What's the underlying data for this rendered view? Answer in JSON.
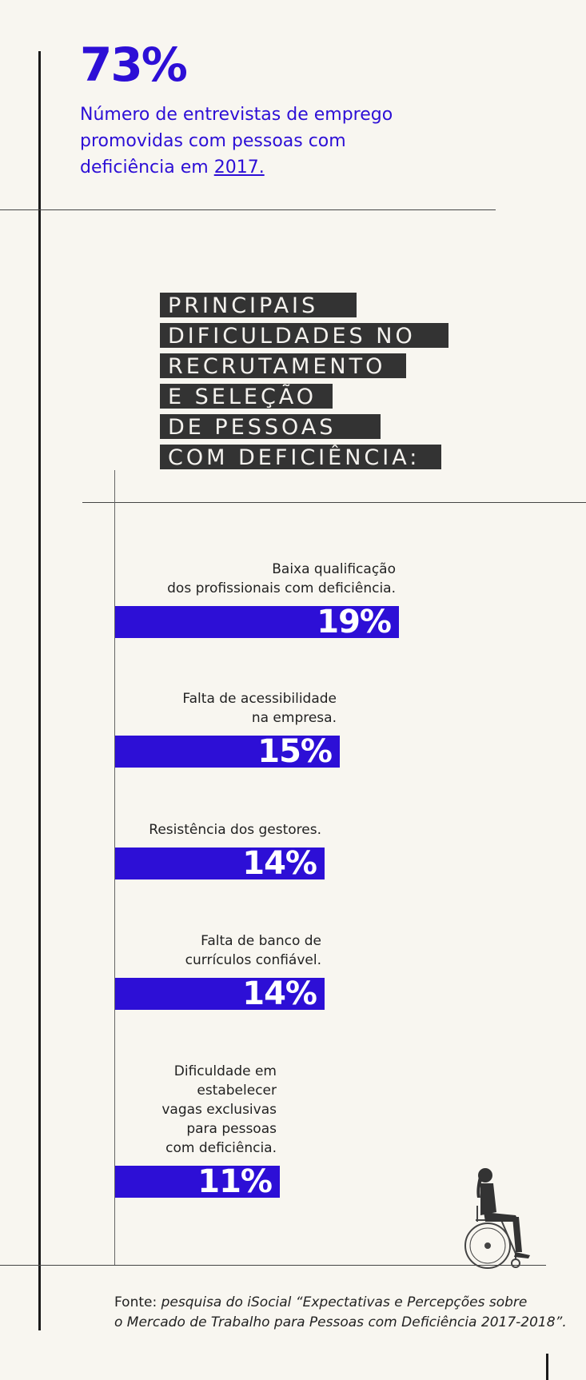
{
  "highlight": {
    "value": "73%",
    "description": "Número de entrevistas de emprego promovidas com pessoas com deficiência em",
    "year": "2017."
  },
  "heading": {
    "lines": [
      "PRINCIPAIS",
      "DIFICULDADES NO",
      "RECRUTAMENTO",
      "E SELEÇÃO",
      "DE PESSOAS",
      "COM DEFICIÊNCIA:"
    ]
  },
  "chart_data": {
    "type": "bar",
    "orientation": "horizontal",
    "categories": [
      "Baixa qualificação dos profissionais com deficiência.",
      "Falta de acessibilidade na empresa.",
      "Resistência dos gestores.",
      "Falta de banco de currículos confiável.",
      "Dificuldade em estabelecer vagas exclusivas para pessoas com deficiência."
    ],
    "category_lines": [
      [
        "Baixa qualificação",
        "dos profissionais com deficiência."
      ],
      [
        "Falta de acessibilidade",
        "na empresa."
      ],
      [
        "Resistência dos gestores."
      ],
      [
        "Falta de banco de",
        "currículos confiável."
      ],
      [
        "Dificuldade em",
        "estabelecer",
        "vagas exclusivas",
        "para pessoas",
        "com deficiência."
      ]
    ],
    "values": [
      19,
      15,
      14,
      14,
      11
    ],
    "value_labels": [
      "19%",
      "15%",
      "14%",
      "14%",
      "11%"
    ],
    "unit": "%",
    "bar_color": "#2d0fd6"
  },
  "source": {
    "prefix": "Fonte:",
    "text": "pesquisa do iSocial “Expectativas e Percepções sobre",
    "text_line2": "o Mercado de Trabalho para Pessoas com Deficiência 2017-2018”."
  },
  "illustration": {
    "icon": "wheelchair-user-icon"
  },
  "colors": {
    "accent": "#2d0fd6",
    "heading_bg": "#333333",
    "background": "#f8f6f0"
  }
}
